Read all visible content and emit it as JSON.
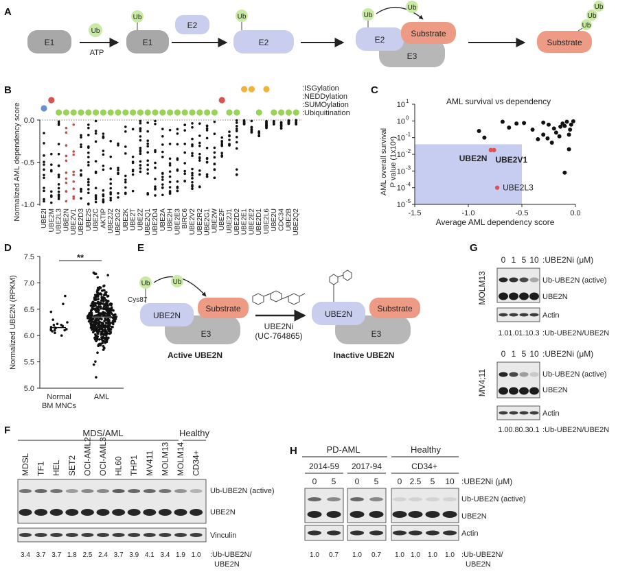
{
  "panels": {
    "a": "A",
    "b": "B",
    "c": "C",
    "d": "D",
    "e": "E",
    "f": "F",
    "g": "G",
    "h": "H"
  },
  "panel_a": {
    "e1": "E1",
    "e2": "E2",
    "e3": "E3",
    "ub": "Ub",
    "atp": "ATP",
    "substrate": "Substrate",
    "colors": {
      "e1": "#a8a8a8",
      "e2": "#c9cdee",
      "e3": "#b7b7b7",
      "substrate": "#ee9b85",
      "ub": "#c9e9a6"
    }
  },
  "chart_data": [
    {
      "id": "B",
      "type": "scatter",
      "ylabel": "Normalized AML dependency score",
      "ylim": [
        -1.0,
        0.0
      ],
      "yticks": [
        "0.0",
        "-0.5",
        "-1.0"
      ],
      "categories": [
        "UBE2I",
        "UBE2M",
        "UBE2L3",
        "UBE2N",
        "UBE2V1",
        "UBE2D3",
        "UBE2S",
        "UBE2C",
        "AKTIP",
        "UBE2J2",
        "UBE2G2",
        "UBE2K",
        "UBE2T",
        "UBE2Z",
        "UBE2Q1",
        "UBE2D4",
        "UBE2A",
        "UBE2H",
        "UBE2E3",
        "BIRC6",
        "UBE2V2",
        "UBE2R2",
        "UBE2G1",
        "UBE2W",
        "UBE2F",
        "UBE2J1",
        "UBE2D2",
        "UBE2E1",
        "UBE2E2",
        "UBE2D1",
        "UBE2L6",
        "UBE2U",
        "CDC34",
        "UBE2B",
        "UBE2Q2"
      ],
      "highlight": [
        "UBE2N",
        "UBE2V1"
      ],
      "highlight_color": "#c0504d",
      "legend": [
        {
          "label": ":ISGylation",
          "color": "#f0b43c"
        },
        {
          "label": ":NEDDylation",
          "color": "#d9534f"
        },
        {
          "label": ":SUMOylation",
          "color": "#6b8fcf"
        },
        {
          "label": ":Ubiquitination",
          "color": "#9bd35a"
        }
      ],
      "pathway_row": {
        "UBE2I": "SUMOylation",
        "UBE2M": "NEDDylation",
        "UBE2F": "NEDDylation",
        "UBE2E1": "ISGylation",
        "UBE2E2": "ISGylation",
        "UBE2L6": "ISGylation"
      },
      "min_values": [
        -1.0,
        -1.0,
        -1.0,
        -1.0,
        -0.95,
        -1.0,
        -1.0,
        -0.98,
        -0.98,
        -0.95,
        -0.92,
        -0.9,
        -0.9,
        -0.9,
        -0.9,
        -0.9,
        -0.9,
        -0.88,
        -0.85,
        -0.85,
        -0.85,
        -0.85,
        -0.7,
        -0.7,
        -0.5,
        -0.3,
        -0.65,
        -0.05,
        -0.15,
        -0.2,
        -0.1,
        -0.05,
        -0.1,
        -0.05,
        -0.05
      ]
    },
    {
      "id": "C",
      "type": "scatter",
      "title": "AML survival vs dependency",
      "xlabel": "Average AML dependency score",
      "ylabel_line1": "AML overall survival",
      "ylabel_line2": "P value (1x10ˣ)",
      "xlim": [
        -1.5,
        0.0
      ],
      "xticks": [
        "-1.5",
        "-1.0",
        "-0.5",
        "0.0"
      ],
      "ylim_log10": [
        -5,
        1
      ],
      "ytick_bases": [
        "10",
        "10",
        "10",
        "10",
        "10",
        "10",
        "10"
      ],
      "ytick_exps": [
        "1",
        "0",
        "-1",
        "-2",
        "-3",
        "-4",
        "-5"
      ],
      "shade_region": {
        "x": [
          -1.5,
          -0.5
        ],
        "y_log10": [
          -5,
          -1.4
        ]
      },
      "points": [
        {
          "x": -0.68,
          "y": 0.9
        },
        {
          "x": -0.55,
          "y": 0.7
        },
        {
          "x": -0.48,
          "y": 0.75
        },
        {
          "x": -0.62,
          "y": 0.4
        },
        {
          "x": -0.85,
          "y": 0.1
        },
        {
          "x": -0.9,
          "y": 0.25
        },
        {
          "x": -0.3,
          "y": 0.8
        },
        {
          "x": -0.25,
          "y": 0.6
        },
        {
          "x": -0.2,
          "y": 0.35
        },
        {
          "x": -0.15,
          "y": 0.12
        },
        {
          "x": -0.1,
          "y": 0.5
        },
        {
          "x": -0.08,
          "y": 0.9
        },
        {
          "x": -0.05,
          "y": 0.3
        },
        {
          "x": -0.06,
          "y": 0.02
        },
        {
          "x": -0.12,
          "y": 0.7
        },
        {
          "x": -0.18,
          "y": 0.2
        },
        {
          "x": -0.22,
          "y": 0.05
        },
        {
          "x": -0.3,
          "y": 0.15
        },
        {
          "x": -0.35,
          "y": 0.08
        },
        {
          "x": -0.04,
          "y": 0.6
        },
        {
          "x": -0.02,
          "y": 0.95
        },
        {
          "x": -0.1,
          "y": 0.0008
        },
        {
          "x": -0.26,
          "y": 0.09
        },
        {
          "x": -0.14,
          "y": 0.45
        },
        {
          "x": -0.06,
          "y": 0.15
        },
        {
          "x": -0.4,
          "y": 0.3
        }
      ],
      "highlight_points": [
        {
          "label": "UBE2N",
          "x": -0.79,
          "y": 0.018
        },
        {
          "label": "UBE2V1",
          "x": -0.76,
          "y": 0.018
        },
        {
          "label": "UBE2L3",
          "x": -0.73,
          "y": 0.0001
        }
      ],
      "shade_color": "#c7cdf0",
      "highlight_color": "#d9534f"
    },
    {
      "id": "D",
      "type": "scatter",
      "ylabel": "Normalized UBE2N (RPKM)",
      "ylim": [
        5.0,
        7.5
      ],
      "yticks": [
        "7.5",
        "7.0",
        "6.5",
        "6.0",
        "5.5",
        "5.0"
      ],
      "categories": [
        "Normal BM MNCs",
        "AML"
      ],
      "group1_line1": "Normal",
      "group1_line2": "BM MNCs",
      "group2": "AML",
      "significance": "**",
      "normal_median": 6.15,
      "aml_median": 6.35,
      "normal_values": [
        6.05,
        6.1,
        6.12,
        6.15,
        6.18,
        6.2,
        6.22,
        6.1,
        6.08,
        6.3,
        6.45,
        6.6,
        6.75,
        6.0,
        6.12,
        6.16,
        6.2,
        6.14,
        6.25,
        6.1
      ],
      "aml_range": [
        5.2,
        7.2
      ]
    }
  ],
  "panel_e": {
    "ub": "Ub",
    "cys": "Cys87",
    "ube2n": "UBE2N",
    "substrate": "Substrate",
    "e3": "E3",
    "inhibitor": "UBE2Ni",
    "inhibitor_id": "(UC-764865)",
    "active": "Active UBE2N",
    "inactive": "Inactive UBE2N"
  },
  "panel_f": {
    "group_mds": "MDS/AML",
    "group_healthy": "Healthy",
    "lanes": [
      "MDSL",
      "TF1",
      "HEL",
      "SET2",
      "OCI-AML2",
      "OCI-AML3",
      "HL60",
      "THP1",
      "MV411",
      "MOLM13",
      "MOLM14",
      "CD34+"
    ],
    "ratios": [
      "3.4",
      "3.7",
      "3.7",
      "1.8",
      "2.5",
      "2.4",
      "3.7",
      "3.9",
      "4.1",
      "3.4",
      "1.9",
      "1.0"
    ],
    "band_ub": "Ub-UBE2N (active)",
    "band_ube2n": "UBE2N",
    "band_vinculin": "Vinculin",
    "ratio_label_1": ":Ub-UBE2N/",
    "ratio_label_2": "UBE2N"
  },
  "panel_g": {
    "doses": [
      "0",
      "1",
      "5",
      "10"
    ],
    "dose_label": ":UBE2Ni (μM)",
    "band_ub": "Ub-UBE2N (active)",
    "band_ube2n": "UBE2N",
    "band_actin": "Actin",
    "ratio_label": ":Ub-UBE2N/UBE2N",
    "cell1": "MOLM13",
    "cell2": "MV4;11",
    "ratios1": [
      "1.0",
      "1.0",
      "1.1",
      "0.3"
    ],
    "ratios2": [
      "1.0",
      "0.8",
      "0.3",
      "0.1"
    ]
  },
  "panel_h": {
    "group_pd": "PD-AML",
    "group_healthy": "Healthy",
    "sample1": "2014-59",
    "sample2": "2017-94",
    "sample3": "CD34+",
    "doses1": [
      "0",
      "5"
    ],
    "doses2": [
      "0",
      "5"
    ],
    "doses3": [
      "0",
      "2.5",
      "5",
      "10"
    ],
    "dose_label": ":UBE2Ni (μM)",
    "band_ub": "Ub-UBE2N (active)",
    "band_ube2n": "UBE2N",
    "band_actin": "Actin",
    "ratios1": [
      "1.0",
      "0.7"
    ],
    "ratios2": [
      "1.0",
      "0.7"
    ],
    "ratios3": [
      "1.0",
      "1.0",
      "1.0",
      "1.0"
    ],
    "ratio_label_1": ":Ub-UBE2N/",
    "ratio_label_2": "UBE2N"
  }
}
